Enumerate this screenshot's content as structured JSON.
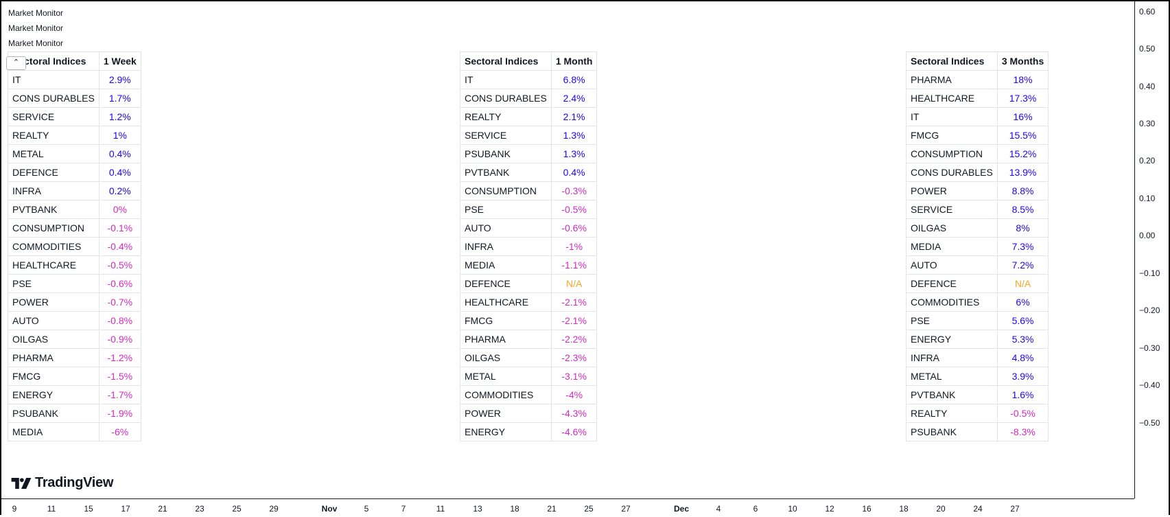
{
  "legend": [
    "Market Monitor",
    "Market Monitor",
    "Market Monitor"
  ],
  "collapse_icon": "chevron-up-icon",
  "brand": {
    "name": "TradingView",
    "icon": "tradingview-logo-icon"
  },
  "price_axis": [
    "0.60",
    "0.50",
    "0.40",
    "0.30",
    "0.20",
    "0.10",
    "0.00",
    "−0.10",
    "−0.20",
    "−0.30",
    "−0.40",
    "−0.50"
  ],
  "time_axis": [
    {
      "label": "9",
      "bold": false
    },
    {
      "label": "11",
      "bold": false
    },
    {
      "label": "15",
      "bold": false
    },
    {
      "label": "17",
      "bold": false
    },
    {
      "label": "21",
      "bold": false
    },
    {
      "label": "23",
      "bold": false
    },
    {
      "label": "25",
      "bold": false
    },
    {
      "label": "29",
      "bold": false
    },
    {
      "label": "Nov",
      "bold": true
    },
    {
      "label": "5",
      "bold": false
    },
    {
      "label": "7",
      "bold": false
    },
    {
      "label": "11",
      "bold": false
    },
    {
      "label": "13",
      "bold": false
    },
    {
      "label": "18",
      "bold": false
    },
    {
      "label": "21",
      "bold": false
    },
    {
      "label": "25",
      "bold": false
    },
    {
      "label": "27",
      "bold": false
    },
    {
      "label": "Dec",
      "bold": true
    },
    {
      "label": "4",
      "bold": false
    },
    {
      "label": "6",
      "bold": false
    },
    {
      "label": "10",
      "bold": false
    },
    {
      "label": "12",
      "bold": false
    },
    {
      "label": "16",
      "bold": false
    },
    {
      "label": "18",
      "bold": false
    },
    {
      "label": "20",
      "bold": false
    },
    {
      "label": "24",
      "bold": false
    },
    {
      "label": "27",
      "bold": false
    }
  ],
  "colors": {
    "positive": "#1f00ff",
    "negative": "#d429c2",
    "na": "#f5a623"
  },
  "tables": [
    {
      "header": [
        "Sectoral Indices",
        "1 Week"
      ],
      "rows": [
        [
          "IT",
          "2.9%",
          "pos"
        ],
        [
          "CONS DURABLES",
          "1.7%",
          "pos"
        ],
        [
          "SERVICE",
          "1.2%",
          "pos"
        ],
        [
          "REALTY",
          "1%",
          "pos"
        ],
        [
          "METAL",
          "0.4%",
          "pos"
        ],
        [
          "DEFENCE",
          "0.4%",
          "pos"
        ],
        [
          "INFRA",
          "0.2%",
          "pos"
        ],
        [
          "PVTBANK",
          "0%",
          "neg"
        ],
        [
          "CONSUMPTION",
          "-0.1%",
          "neg"
        ],
        [
          "COMMODITIES",
          "-0.4%",
          "neg"
        ],
        [
          "HEALTHCARE",
          "-0.5%",
          "neg"
        ],
        [
          "PSE",
          "-0.6%",
          "neg"
        ],
        [
          "POWER",
          "-0.7%",
          "neg"
        ],
        [
          "AUTO",
          "-0.8%",
          "neg"
        ],
        [
          "OILGAS",
          "-0.9%",
          "neg"
        ],
        [
          "PHARMA",
          "-1.2%",
          "neg"
        ],
        [
          "FMCG",
          "-1.5%",
          "neg"
        ],
        [
          "ENERGY",
          "-1.7%",
          "neg"
        ],
        [
          "PSUBANK",
          "-1.9%",
          "neg"
        ],
        [
          "MEDIA",
          "-6%",
          "neg"
        ]
      ]
    },
    {
      "header": [
        "Sectoral Indices",
        "1 Month"
      ],
      "rows": [
        [
          "IT",
          "6.8%",
          "pos"
        ],
        [
          "CONS DURABLES",
          "2.4%",
          "pos"
        ],
        [
          "REALTY",
          "2.1%",
          "pos"
        ],
        [
          "SERVICE",
          "1.3%",
          "pos"
        ],
        [
          "PSUBANK",
          "1.3%",
          "pos"
        ],
        [
          "PVTBANK",
          "0.4%",
          "pos"
        ],
        [
          "CONSUMPTION",
          "-0.3%",
          "neg"
        ],
        [
          "PSE",
          "-0.5%",
          "neg"
        ],
        [
          "AUTO",
          "-0.6%",
          "neg"
        ],
        [
          "INFRA",
          "-1%",
          "neg"
        ],
        [
          "MEDIA",
          "-1.1%",
          "neg"
        ],
        [
          "DEFENCE",
          "N/A",
          "na"
        ],
        [
          "HEALTHCARE",
          "-2.1%",
          "neg"
        ],
        [
          "FMCG",
          "-2.1%",
          "neg"
        ],
        [
          "PHARMA",
          "-2.2%",
          "neg"
        ],
        [
          "OILGAS",
          "-2.3%",
          "neg"
        ],
        [
          "METAL",
          "-3.1%",
          "neg"
        ],
        [
          "COMMODITIES",
          "-4%",
          "neg"
        ],
        [
          "POWER",
          "-4.3%",
          "neg"
        ],
        [
          "ENERGY",
          "-4.6%",
          "neg"
        ]
      ]
    },
    {
      "header": [
        "Sectoral Indices",
        "3 Months"
      ],
      "rows": [
        [
          "PHARMA",
          "18%",
          "pos"
        ],
        [
          "HEALTHCARE",
          "17.3%",
          "pos"
        ],
        [
          "IT",
          "16%",
          "pos"
        ],
        [
          "FMCG",
          "15.5%",
          "pos"
        ],
        [
          "CONSUMPTION",
          "15.2%",
          "pos"
        ],
        [
          "CONS DURABLES",
          "13.9%",
          "pos"
        ],
        [
          "POWER",
          "8.8%",
          "pos"
        ],
        [
          "SERVICE",
          "8.5%",
          "pos"
        ],
        [
          "OILGAS",
          "8%",
          "pos"
        ],
        [
          "MEDIA",
          "7.3%",
          "pos"
        ],
        [
          "AUTO",
          "7.2%",
          "pos"
        ],
        [
          "DEFENCE",
          "N/A",
          "na"
        ],
        [
          "COMMODITIES",
          "6%",
          "pos"
        ],
        [
          "PSE",
          "5.6%",
          "pos"
        ],
        [
          "ENERGY",
          "5.3%",
          "pos"
        ],
        [
          "INFRA",
          "4.8%",
          "pos"
        ],
        [
          "METAL",
          "3.9%",
          "pos"
        ],
        [
          "PVTBANK",
          "1.6%",
          "pos"
        ],
        [
          "REALTY",
          "-0.5%",
          "neg"
        ],
        [
          "PSUBANK",
          "-8.3%",
          "neg"
        ]
      ]
    }
  ]
}
